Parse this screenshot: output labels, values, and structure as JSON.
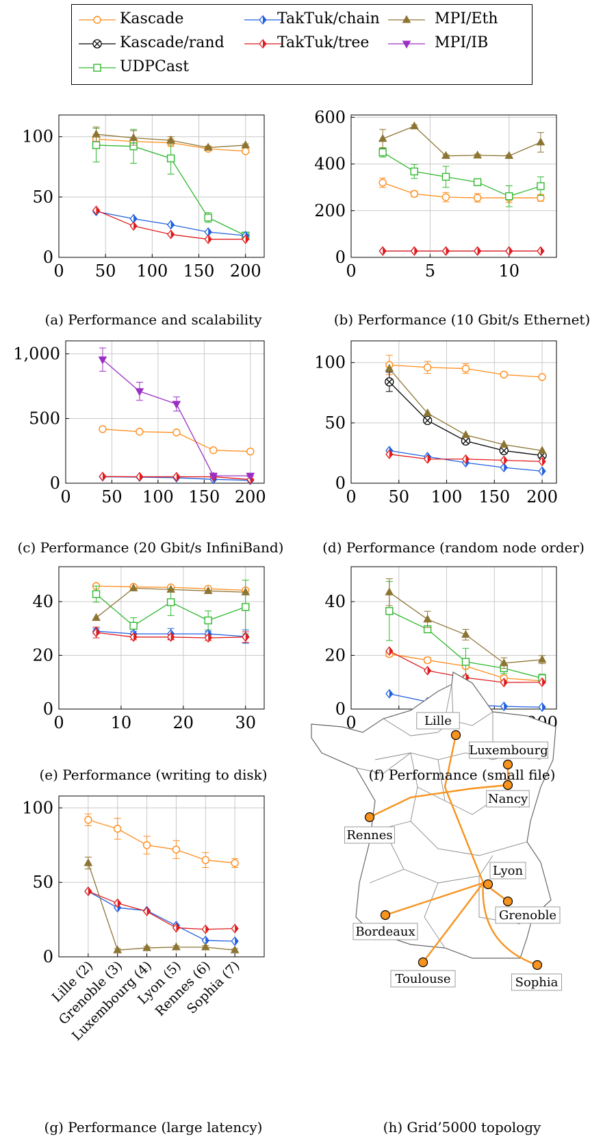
{
  "legend": [
    {
      "name": "Kascade",
      "color": "#ff8c1a",
      "marker": "circle"
    },
    {
      "name": "Kascade/rand",
      "color": "#000000",
      "marker": "otimes"
    },
    {
      "name": "UDPCast",
      "color": "#2eb82e",
      "marker": "square"
    },
    {
      "name": "TakTuk/chain",
      "color": "#1f5fe0",
      "marker": "diamond"
    },
    {
      "name": "TakTuk/tree",
      "color": "#e01b1b",
      "marker": "diamond"
    },
    {
      "name": "MPI/Eth",
      "color": "#8c7433",
      "marker": "triangle-up"
    },
    {
      "name": "MPI/IB",
      "color": "#9b2fc4",
      "marker": "triangle-down"
    }
  ],
  "captions": {
    "a": "(a) Performance and scalability",
    "b": "(b) Performance (10 Gbit/s Ethernet)",
    "c": "(c) Performance (20 Gbit/s InfiniBand)",
    "d": "(d) Performance (random node order)",
    "e": "(e) Performance (writing to disk)",
    "f": "(f) Performance (small file)",
    "g": "(g) Performance (large latency)",
    "h": "(h) Grid’5000 topology"
  },
  "chart_data": [
    {
      "id": "a",
      "type": "line",
      "xlim": [
        0,
        220
      ],
      "ylim": [
        0,
        118
      ],
      "xticks": [
        0,
        50,
        100,
        150,
        200
      ],
      "yticks": [
        0,
        50,
        100
      ],
      "grid": true,
      "series": [
        {
          "name": "Kascade",
          "x": [
            40,
            80,
            120,
            160,
            200
          ],
          "values": [
            98,
            96,
            95,
            90,
            88
          ]
        },
        {
          "name": "UDPCast",
          "x": [
            40,
            80,
            120,
            160,
            200
          ],
          "values": [
            93,
            92,
            82,
            33,
            18
          ]
        },
        {
          "name": "TakTuk/chain",
          "x": [
            40,
            80,
            120,
            160,
            200
          ],
          "values": [
            38,
            32,
            27,
            21,
            18
          ]
        },
        {
          "name": "TakTuk/tree",
          "x": [
            40,
            80,
            120,
            160,
            200
          ],
          "values": [
            39,
            26,
            19,
            15,
            15
          ]
        },
        {
          "name": "MPI/Eth",
          "x": [
            40,
            80,
            120,
            160,
            200
          ],
          "values": [
            102,
            99,
            97,
            91,
            93
          ]
        }
      ]
    },
    {
      "id": "b",
      "type": "line",
      "xlim": [
        0,
        13
      ],
      "ylim": [
        0,
        610
      ],
      "xticks": [
        0,
        5,
        10
      ],
      "yticks": [
        0,
        200,
        400,
        600
      ],
      "grid": true,
      "series": [
        {
          "name": "Kascade",
          "x": [
            2,
            4,
            6,
            8,
            10,
            12
          ],
          "values": [
            320,
            272,
            258,
            255,
            255,
            255
          ]
        },
        {
          "name": "UDPCast",
          "x": [
            2,
            4,
            6,
            8,
            10,
            12
          ],
          "values": [
            450,
            368,
            345,
            322,
            262,
            305
          ]
        },
        {
          "name": "TakTuk/chain",
          "x": [
            2,
            4,
            6,
            8,
            10,
            12
          ],
          "values": [
            27,
            27,
            27,
            27,
            27,
            27
          ]
        },
        {
          "name": "TakTuk/tree",
          "x": [
            2,
            4,
            6,
            8,
            10,
            12
          ],
          "values": [
            27,
            27,
            27,
            27,
            27,
            27
          ]
        },
        {
          "name": "MPI/Eth",
          "x": [
            2,
            4,
            6,
            8,
            10,
            12
          ],
          "values": [
            508,
            562,
            435,
            437,
            435,
            493
          ]
        }
      ]
    },
    {
      "id": "c",
      "type": "line",
      "xlim": [
        0,
        215
      ],
      "ylim": [
        0,
        1100
      ],
      "xticks": [
        0,
        50,
        100,
        150,
        200
      ],
      "yticks": [
        0,
        500,
        1000
      ],
      "ytick_labels": [
        "0",
        "500",
        "1,000"
      ],
      "grid": true,
      "series": [
        {
          "name": "Kascade",
          "x": [
            40,
            80,
            120,
            160,
            200
          ],
          "values": [
            418,
            398,
            392,
            255,
            245
          ]
        },
        {
          "name": "TakTuk/chain",
          "x": [
            40,
            80,
            120,
            160,
            200
          ],
          "values": [
            50,
            47,
            42,
            30,
            22
          ]
        },
        {
          "name": "TakTuk/tree",
          "x": [
            40,
            80,
            120,
            160,
            200
          ],
          "values": [
            52,
            50,
            50,
            50,
            28
          ]
        },
        {
          "name": "MPI/IB",
          "x": [
            40,
            80,
            120,
            160,
            200
          ],
          "values": [
            955,
            710,
            612,
            57,
            57
          ]
        }
      ]
    },
    {
      "id": "d",
      "type": "line",
      "xlim": [
        0,
        215
      ],
      "ylim": [
        0,
        118
      ],
      "xticks": [
        0,
        50,
        100,
        150,
        200
      ],
      "yticks": [
        0,
        50,
        100
      ],
      "grid": true,
      "series": [
        {
          "name": "Kascade",
          "x": [
            40,
            80,
            120,
            160,
            200
          ],
          "values": [
            98,
            96,
            95,
            90,
            88
          ]
        },
        {
          "name": "Kascade/rand",
          "x": [
            40,
            80,
            120,
            160,
            200
          ],
          "values": [
            84,
            52,
            35,
            27,
            23
          ]
        },
        {
          "name": "TakTuk/chain",
          "x": [
            40,
            80,
            120,
            160,
            200
          ],
          "values": [
            27,
            22,
            17,
            13,
            10
          ]
        },
        {
          "name": "TakTuk/tree",
          "x": [
            40,
            80,
            120,
            160,
            200
          ],
          "values": [
            24,
            20,
            20,
            19,
            18
          ]
        },
        {
          "name": "MPI/Eth",
          "x": [
            40,
            80,
            120,
            160,
            200
          ],
          "values": [
            95,
            58,
            40,
            32,
            27
          ]
        }
      ]
    },
    {
      "id": "e",
      "type": "line",
      "xlim": [
        0,
        33
      ],
      "ylim": [
        0,
        53
      ],
      "xticks": [
        0,
        10,
        20,
        30
      ],
      "yticks": [
        0,
        20,
        40
      ],
      "grid": true,
      "series": [
        {
          "name": "Kascade",
          "x": [
            6,
            12,
            18,
            24,
            30
          ],
          "values": [
            45.8,
            45.5,
            45.3,
            44.8,
            44.2
          ]
        },
        {
          "name": "UDPCast",
          "x": [
            6,
            12,
            18,
            24,
            30
          ],
          "values": [
            42.8,
            31,
            39.8,
            33,
            38
          ]
        },
        {
          "name": "TakTuk/chain",
          "x": [
            6,
            12,
            18,
            24,
            30
          ],
          "values": [
            29,
            28,
            28,
            28,
            27
          ]
        },
        {
          "name": "TakTuk/tree",
          "x": [
            6,
            12,
            18,
            24,
            30
          ],
          "values": [
            28.5,
            26.8,
            26.8,
            26.5,
            26.8
          ]
        },
        {
          "name": "MPI/Eth",
          "x": [
            6,
            12,
            18,
            24,
            30
          ],
          "values": [
            34,
            45,
            44.5,
            44,
            43.5
          ]
        }
      ]
    },
    {
      "id": "f",
      "type": "line",
      "xlim": [
        0,
        215
      ],
      "ylim": [
        0,
        53
      ],
      "xticks": [
        0,
        50,
        100,
        150,
        200
      ],
      "yticks": [
        0,
        20,
        40
      ],
      "grid": true,
      "series": [
        {
          "name": "Kascade",
          "x": [
            40,
            80,
            120,
            160,
            200
          ],
          "values": [
            20.5,
            18.2,
            16,
            11.5,
            10.5
          ]
        },
        {
          "name": "UDPCast",
          "x": [
            40,
            80,
            120,
            160,
            200
          ],
          "values": [
            36.5,
            29.7,
            17.6,
            15.2,
            11.5
          ]
        },
        {
          "name": "TakTuk/chain",
          "x": [
            40,
            80,
            120,
            160,
            200
          ],
          "values": [
            5.7,
            2.7,
            1.6,
            1.0,
            0.7
          ]
        },
        {
          "name": "TakTuk/tree",
          "x": [
            40,
            80,
            120,
            160,
            200
          ],
          "values": [
            21.6,
            14.3,
            11.7,
            9.9,
            10
          ]
        },
        {
          "name": "MPI/Eth",
          "x": [
            40,
            80,
            120,
            160,
            200
          ],
          "values": [
            43.5,
            33.4,
            27.7,
            17.1,
            18.4
          ]
        }
      ]
    },
    {
      "id": "g",
      "type": "line",
      "categories": [
        "Lille (2)",
        "Grenoble (3)",
        "Luxembourg (4)",
        "Lyon (5)",
        "Rennes (6)",
        "Sophia (7)"
      ],
      "ylim": [
        0,
        108
      ],
      "yticks": [
        0,
        50,
        100
      ],
      "grid": true,
      "series": [
        {
          "name": "Kascade",
          "values": [
            92,
            86,
            75,
            72,
            65,
            63
          ]
        },
        {
          "name": "TakTuk/chain",
          "values": [
            44,
            33,
            31,
            21,
            11,
            10.5
          ]
        },
        {
          "name": "TakTuk/tree",
          "values": [
            44,
            36,
            30.5,
            19.5,
            18.5,
            19
          ]
        },
        {
          "name": "MPI/Eth",
          "values": [
            63,
            4.5,
            6,
            6.5,
            6.5,
            4.5
          ]
        }
      ]
    }
  ],
  "map": {
    "sites": [
      "Lille",
      "Luxembourg",
      "Nancy",
      "Rennes",
      "Lyon",
      "Bordeaux",
      "Grenoble",
      "Toulouse",
      "Sophia"
    ]
  }
}
